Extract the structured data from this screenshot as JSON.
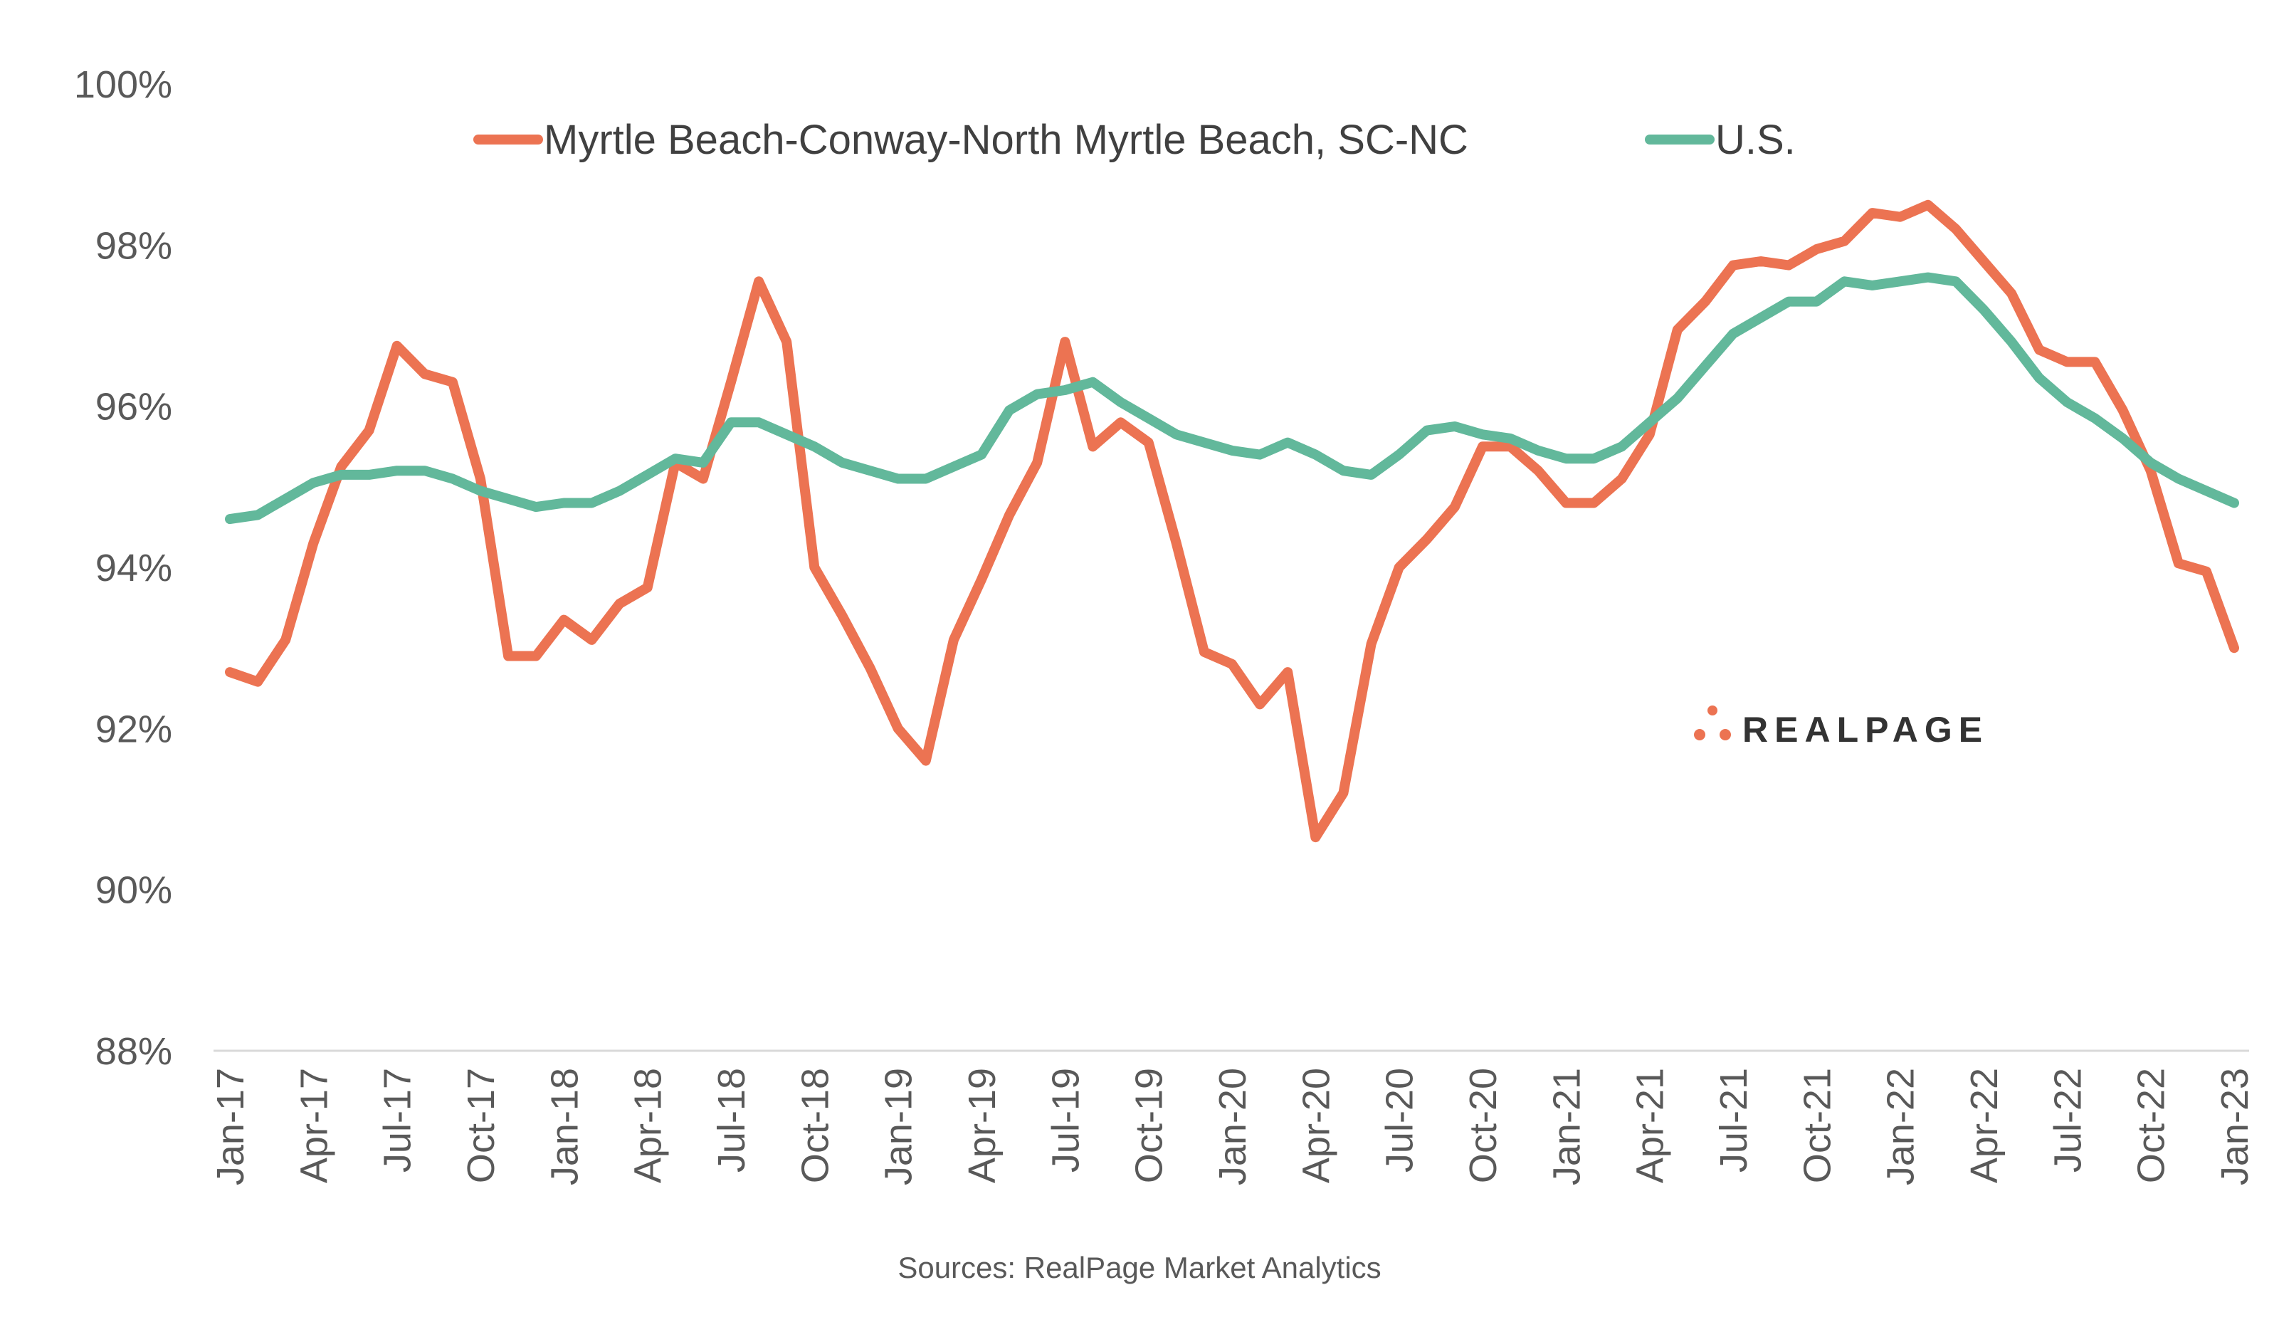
{
  "chart_data": {
    "type": "line",
    "title": "",
    "xlabel": "",
    "ylabel": "",
    "ylim": [
      88,
      100
    ],
    "y_ticks": [
      "88%",
      "90%",
      "92%",
      "94%",
      "96%",
      "98%",
      "100%"
    ],
    "y_tick_values": [
      88,
      90,
      92,
      94,
      96,
      98,
      100
    ],
    "x_tick_labels": [
      "Jan-17",
      "Apr-17",
      "Jul-17",
      "Oct-17",
      "Jan-18",
      "Apr-18",
      "Jul-18",
      "Oct-18",
      "Jan-19",
      "Apr-19",
      "Jul-19",
      "Oct-19",
      "Jan-20",
      "Apr-20",
      "Jul-20",
      "Oct-20",
      "Jan-21",
      "Apr-21",
      "Jul-21",
      "Oct-21",
      "Jan-22",
      "Apr-22",
      "Jul-22",
      "Oct-22",
      "Jan-23"
    ],
    "x_tick_every_months": 3,
    "legend_position": "top",
    "grid": false,
    "series": [
      {
        "name": "Myrtle Beach-Conway-North Myrtle Beach, SC-NC",
        "color": "#EC7352",
        "values": [
          92.7,
          92.58,
          93.1,
          94.3,
          95.25,
          95.7,
          96.75,
          96.4,
          96.3,
          95.1,
          92.9,
          92.9,
          93.35,
          93.1,
          93.55,
          93.75,
          95.3,
          95.1,
          96.3,
          97.55,
          96.8,
          94.0,
          93.4,
          92.75,
          92.0,
          91.6,
          93.1,
          93.85,
          94.65,
          95.3,
          96.8,
          95.5,
          95.8,
          95.55,
          94.3,
          92.95,
          92.8,
          92.3,
          92.7,
          90.65,
          91.2,
          93.05,
          94.0,
          94.35,
          94.75,
          95.5,
          95.5,
          95.2,
          94.8,
          94.8,
          95.1,
          95.65,
          96.95,
          97.3,
          97.75,
          97.8,
          97.75,
          97.95,
          98.05,
          98.4,
          98.35,
          98.5,
          98.2,
          97.8,
          97.4,
          96.7,
          96.55,
          96.55,
          95.95,
          95.2,
          94.05,
          93.95,
          93.0
        ]
      },
      {
        "name": "U.S.",
        "color": "#62B89B",
        "values": [
          94.6,
          94.65,
          94.85,
          95.05,
          95.15,
          95.15,
          95.2,
          95.2,
          95.1,
          94.95,
          94.85,
          94.75,
          94.8,
          94.8,
          94.95,
          95.15,
          95.35,
          95.3,
          95.8,
          95.8,
          95.65,
          95.5,
          95.3,
          95.2,
          95.1,
          95.1,
          95.25,
          95.4,
          95.95,
          96.15,
          96.2,
          96.3,
          96.05,
          95.85,
          95.65,
          95.55,
          95.45,
          95.4,
          95.55,
          95.4,
          95.2,
          95.15,
          95.4,
          95.7,
          95.75,
          95.65,
          95.6,
          95.45,
          95.35,
          95.35,
          95.5,
          95.8,
          96.1,
          96.5,
          96.9,
          97.1,
          97.3,
          97.3,
          97.55,
          97.5,
          97.55,
          97.6,
          97.55,
          97.2,
          96.8,
          96.35,
          96.05,
          95.85,
          95.6,
          95.3,
          95.1,
          94.95,
          94.8
        ]
      }
    ],
    "source": "Sources: RealPage Market Analytics",
    "logo_text": "REALPAGE"
  }
}
